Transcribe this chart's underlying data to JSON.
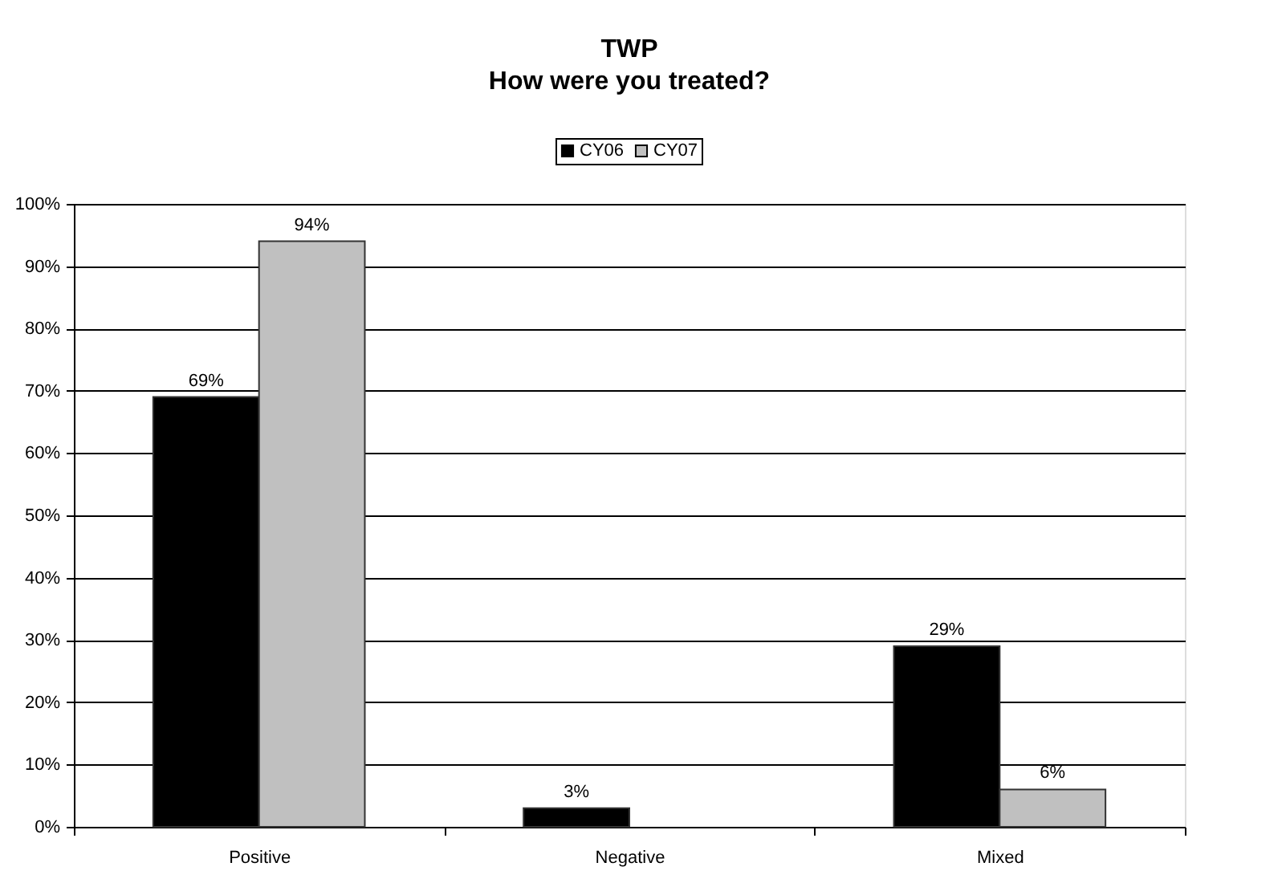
{
  "chart_data": {
    "type": "bar",
    "title": "TWP",
    "subtitle": "How were you treated?",
    "categories": [
      "Positive",
      "Negative",
      "Mixed"
    ],
    "series": [
      {
        "name": "CY06",
        "color": "#000000",
        "values": [
          69,
          3,
          29
        ],
        "value_labels": [
          "69%",
          "3%",
          "29%"
        ]
      },
      {
        "name": "CY07",
        "color": "#c0c0c0",
        "values": [
          94,
          null,
          6
        ],
        "value_labels": [
          "94%",
          null,
          "6%"
        ]
      }
    ],
    "ylim": [
      0,
      100
    ],
    "yticks": [
      {
        "value": 0,
        "label": "0%"
      },
      {
        "value": 10,
        "label": "10%"
      },
      {
        "value": 20,
        "label": "20%"
      },
      {
        "value": 30,
        "label": "30%"
      },
      {
        "value": 40,
        "label": "40%"
      },
      {
        "value": 50,
        "label": "50%"
      },
      {
        "value": 60,
        "label": "60%"
      },
      {
        "value": 70,
        "label": "70%"
      },
      {
        "value": 80,
        "label": "80%"
      },
      {
        "value": 90,
        "label": "90%"
      },
      {
        "value": 100,
        "label": "100%"
      }
    ],
    "grid": "y",
    "legend": "top"
  }
}
